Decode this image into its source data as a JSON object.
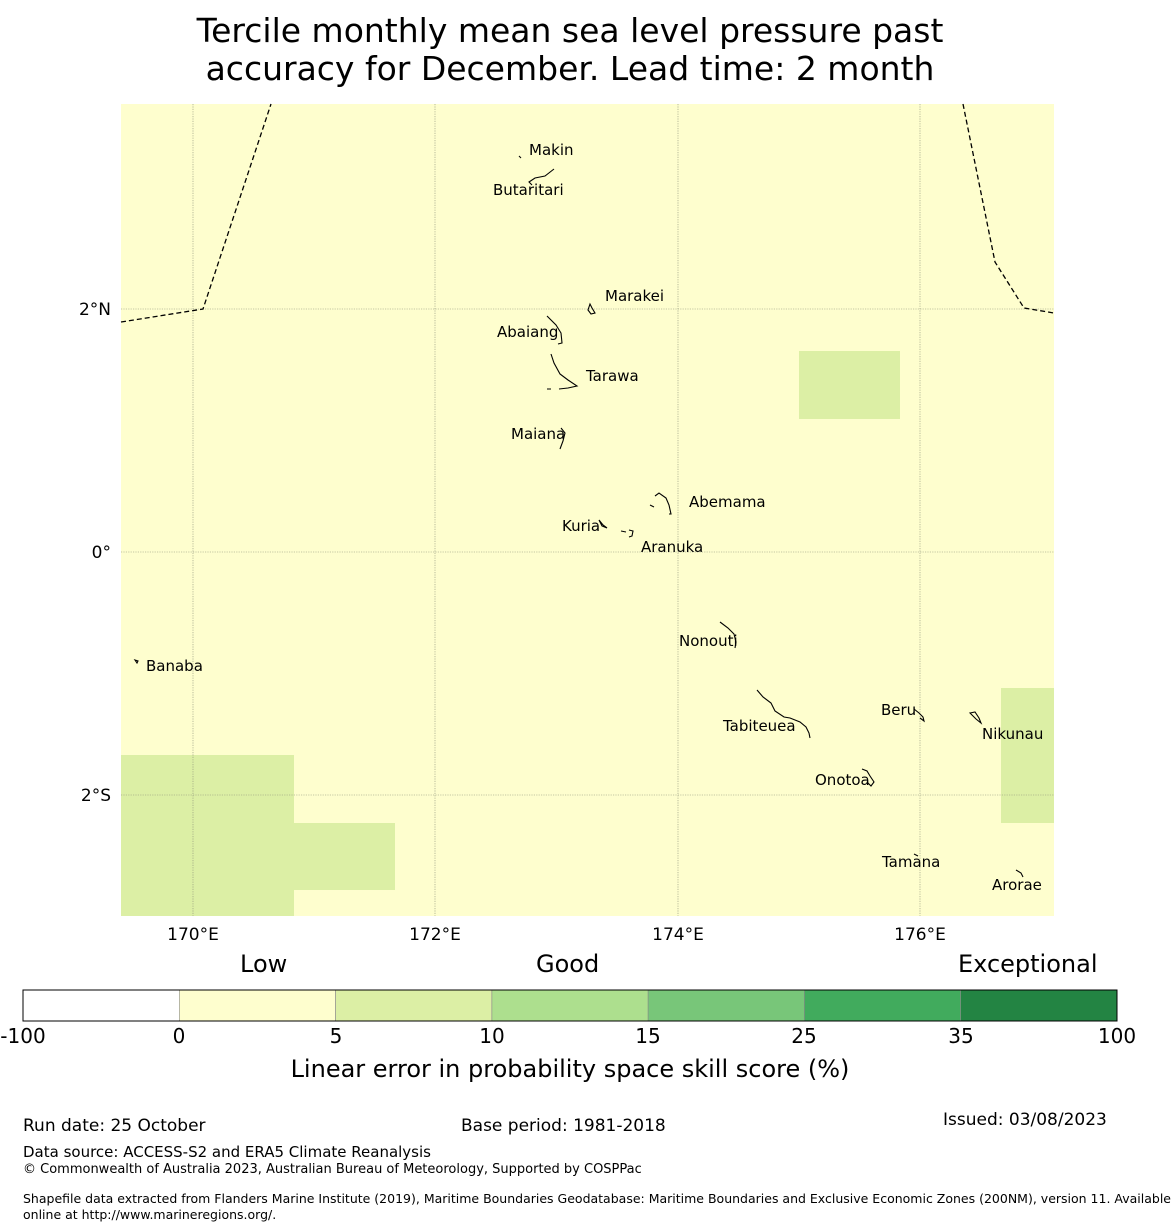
{
  "title_lines": [
    "Tercile monthly mean sea level pressure past",
    "accuracy for December. Lead time: 2 month"
  ],
  "map": {
    "background_color": "#fefece",
    "skill_patch_color": "#dcefa5",
    "skill_patches": [
      {
        "name": "patch-west-southwest",
        "bin": "5-10"
      },
      {
        "name": "patch-southwest-extension",
        "bin": "5-10"
      },
      {
        "name": "patch-central-east",
        "bin": "5-10"
      },
      {
        "name": "patch-far-east",
        "bin": "5-10"
      }
    ],
    "x_ticks": [
      "170°E",
      "172°E",
      "174°E",
      "176°E"
    ],
    "y_ticks": [
      "2°N",
      "0°",
      "2°S"
    ],
    "islands": [
      {
        "name": "Makin"
      },
      {
        "name": "Butaritari"
      },
      {
        "name": "Marakei"
      },
      {
        "name": "Abaiang"
      },
      {
        "name": "Tarawa"
      },
      {
        "name": "Maiana"
      },
      {
        "name": "Abemama"
      },
      {
        "name": "Kuria"
      },
      {
        "name": "Aranuka"
      },
      {
        "name": "Nonouti"
      },
      {
        "name": "Banaba"
      },
      {
        "name": "Tabiteuea"
      },
      {
        "name": "Beru"
      },
      {
        "name": "Nikunau"
      },
      {
        "name": "Onotoa"
      },
      {
        "name": "Tamana"
      },
      {
        "name": "Arorae"
      }
    ]
  },
  "colorbar": {
    "categories": [
      "Low",
      "Good",
      "Exceptional"
    ],
    "bins": [
      {
        "range": "-100 to 0",
        "color": "#ffffff"
      },
      {
        "range": "0 to 5",
        "color": "#fefece"
      },
      {
        "range": "5 to 10",
        "color": "#dcefa5"
      },
      {
        "range": "10 to 15",
        "color": "#addf8e"
      },
      {
        "range": "15 to 25",
        "color": "#78c679"
      },
      {
        "range": "25 to 35",
        "color": "#41ab5d"
      },
      {
        "range": "35 to 100",
        "color": "#238443"
      }
    ],
    "ticks": [
      "-100",
      "0",
      "5",
      "10",
      "15",
      "25",
      "35",
      "100"
    ],
    "label": "Linear error in probability space skill score (%)"
  },
  "footer": {
    "run_date": "Run date: 25 October",
    "base_period": "Base period: 1981-2018",
    "issued": "Issued: 03/08/2023",
    "data_source": "Data source: ACCESS-S2 and ERA5 Climate Reanalysis",
    "copyright": "© Commonwealth of Australia 2023, Australian Bureau of Meteorology, Supported by COSPPac",
    "shapefile_line1": "Shapefile data extracted from Flanders Marine Institute (2019), Maritime Boundaries Geodatabase: Maritime Boundaries and Exclusive Economic Zones (200NM), version 11. Available",
    "shapefile_line2": "online at http://www.marineregions.org/."
  }
}
